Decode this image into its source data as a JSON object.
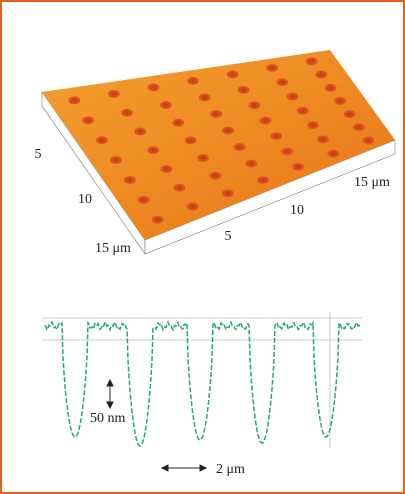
{
  "surface_axes": {
    "left": [
      "5",
      "10",
      "15 μm"
    ],
    "right": [
      "5",
      "10",
      "15 μm"
    ]
  },
  "profile": {
    "vertical_scale": "50 nm",
    "horizontal_scale": "2 μm"
  }
}
